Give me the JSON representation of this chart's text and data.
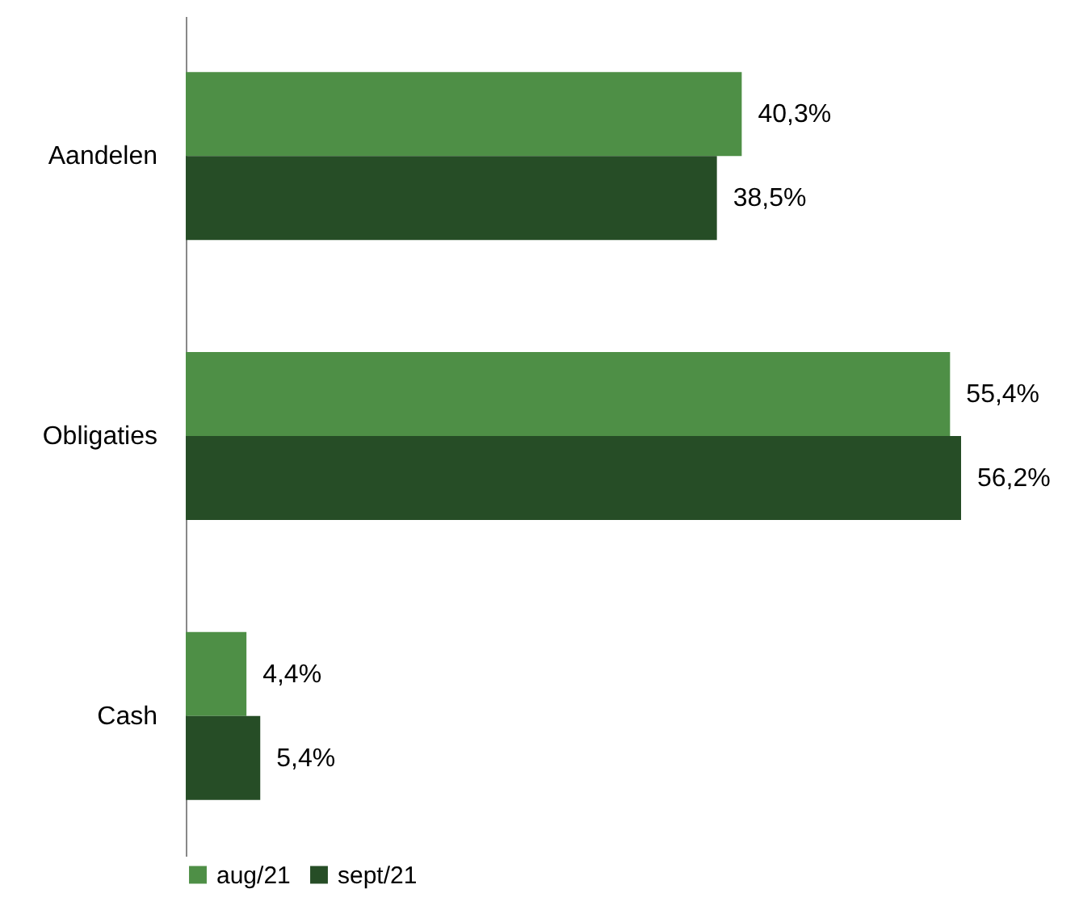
{
  "chart_data": {
    "type": "bar",
    "orientation": "horizontal",
    "categories": [
      "Aandelen",
      "Obligaties",
      "Cash"
    ],
    "series": [
      {
        "name": "aug/21",
        "color": "#4e8f46",
        "values": [
          40.3,
          55.4,
          4.4
        ],
        "value_labels": [
          "40,3%",
          "55,4%",
          "4,4%"
        ]
      },
      {
        "name": "sept/21",
        "color": "#264d26",
        "values": [
          38.5,
          56.2,
          5.4
        ],
        "value_labels": [
          "38,5%",
          "56,2%",
          "5,4%"
        ]
      }
    ],
    "legend": "bottom"
  }
}
